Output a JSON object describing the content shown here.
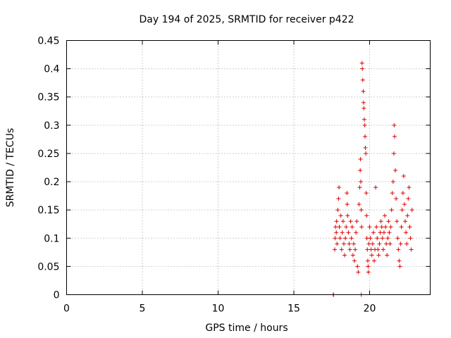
{
  "chart_data": {
    "type": "scatter",
    "title": "Day 194 of 2025, SRMTID for receiver p422",
    "xlabel": "GPS time / hours",
    "ylabel": "SRMTID / TECUs",
    "xlim": [
      0,
      24
    ],
    "ylim": [
      0,
      0.45
    ],
    "xticks": [
      0,
      5,
      10,
      15,
      20
    ],
    "xtick_labels": [
      "0",
      "5",
      "10",
      "15",
      "20"
    ],
    "yticks": [
      0,
      0.05,
      0.1,
      0.15,
      0.2,
      0.25,
      0.3,
      0.35,
      0.4,
      0.45
    ],
    "ytick_labels": [
      "0",
      "0.05",
      "0.1",
      "0.15",
      "0.2",
      "0.25",
      "0.3",
      "0.35",
      "0.4",
      "0.45"
    ],
    "grid": true,
    "marker": "+",
    "color": "#dd0000",
    "series": [
      {
        "name": "SRMTID",
        "points": [
          [
            17.6,
            0.0
          ],
          [
            17.62,
            0.0
          ],
          [
            19.45,
            0.0
          ],
          [
            17.7,
            0.08
          ],
          [
            17.72,
            0.1
          ],
          [
            17.75,
            0.12
          ],
          [
            17.8,
            0.11
          ],
          [
            17.82,
            0.13
          ],
          [
            17.85,
            0.09
          ],
          [
            17.9,
            0.15
          ],
          [
            17.95,
            0.17
          ],
          [
            17.98,
            0.19
          ],
          [
            18.0,
            0.12
          ],
          [
            18.05,
            0.1
          ],
          [
            18.1,
            0.14
          ],
          [
            18.15,
            0.08
          ],
          [
            18.2,
            0.11
          ],
          [
            18.25,
            0.13
          ],
          [
            18.3,
            0.09
          ],
          [
            18.35,
            0.07
          ],
          [
            18.4,
            0.1
          ],
          [
            18.45,
            0.12
          ],
          [
            18.5,
            0.18
          ],
          [
            18.52,
            0.16
          ],
          [
            18.55,
            0.14
          ],
          [
            18.6,
            0.11
          ],
          [
            18.65,
            0.09
          ],
          [
            18.7,
            0.08
          ],
          [
            18.75,
            0.13
          ],
          [
            18.8,
            0.1
          ],
          [
            18.85,
            0.12
          ],
          [
            18.9,
            0.07
          ],
          [
            18.95,
            0.09
          ],
          [
            19.0,
            0.06
          ],
          [
            19.05,
            0.08
          ],
          [
            19.1,
            0.11
          ],
          [
            19.15,
            0.13
          ],
          [
            19.2,
            0.05
          ],
          [
            19.25,
            0.04
          ],
          [
            19.3,
            0.16
          ],
          [
            19.35,
            0.19
          ],
          [
            19.38,
            0.22
          ],
          [
            19.4,
            0.24
          ],
          [
            19.42,
            0.2
          ],
          [
            19.45,
            0.15
          ],
          [
            19.47,
            0.12
          ],
          [
            19.5,
            0.41
          ],
          [
            19.52,
            0.4
          ],
          [
            19.55,
            0.38
          ],
          [
            19.58,
            0.36
          ],
          [
            19.6,
            0.34
          ],
          [
            19.62,
            0.33
          ],
          [
            19.65,
            0.31
          ],
          [
            19.68,
            0.3
          ],
          [
            19.7,
            0.28
          ],
          [
            19.72,
            0.26
          ],
          [
            19.75,
            0.25
          ],
          [
            19.78,
            0.18
          ],
          [
            19.8,
            0.14
          ],
          [
            19.82,
            0.1
          ],
          [
            19.85,
            0.08
          ],
          [
            19.88,
            0.06
          ],
          [
            19.9,
            0.05
          ],
          [
            19.92,
            0.04
          ],
          [
            19.95,
            0.09
          ],
          [
            20.0,
            0.12
          ],
          [
            20.05,
            0.1
          ],
          [
            20.1,
            0.08
          ],
          [
            20.15,
            0.07
          ],
          [
            20.2,
            0.09
          ],
          [
            20.25,
            0.11
          ],
          [
            20.3,
            0.06
          ],
          [
            20.35,
            0.08
          ],
          [
            20.4,
            0.19
          ],
          [
            20.45,
            0.12
          ],
          [
            20.5,
            0.1
          ],
          [
            20.55,
            0.08
          ],
          [
            20.6,
            0.07
          ],
          [
            20.65,
            0.09
          ],
          [
            20.7,
            0.11
          ],
          [
            20.75,
            0.13
          ],
          [
            20.8,
            0.12
          ],
          [
            20.85,
            0.1
          ],
          [
            20.9,
            0.08
          ],
          [
            20.95,
            0.11
          ],
          [
            21.0,
            0.14
          ],
          [
            21.05,
            0.12
          ],
          [
            21.1,
            0.09
          ],
          [
            21.15,
            0.07
          ],
          [
            21.2,
            0.1
          ],
          [
            21.25,
            0.13
          ],
          [
            21.3,
            0.11
          ],
          [
            21.35,
            0.09
          ],
          [
            21.4,
            0.12
          ],
          [
            21.45,
            0.15
          ],
          [
            21.5,
            0.18
          ],
          [
            21.55,
            0.2
          ],
          [
            21.6,
            0.25
          ],
          [
            21.62,
            0.3
          ],
          [
            21.65,
            0.28
          ],
          [
            21.7,
            0.22
          ],
          [
            21.75,
            0.17
          ],
          [
            21.8,
            0.13
          ],
          [
            21.85,
            0.1
          ],
          [
            21.9,
            0.08
          ],
          [
            21.95,
            0.06
          ],
          [
            22.0,
            0.05
          ],
          [
            22.05,
            0.09
          ],
          [
            22.1,
            0.12
          ],
          [
            22.15,
            0.15
          ],
          [
            22.2,
            0.18
          ],
          [
            22.25,
            0.21
          ],
          [
            22.3,
            0.16
          ],
          [
            22.35,
            0.13
          ],
          [
            22.4,
            0.11
          ],
          [
            22.45,
            0.09
          ],
          [
            22.5,
            0.14
          ],
          [
            22.55,
            0.17
          ],
          [
            22.6,
            0.19
          ],
          [
            22.65,
            0.12
          ],
          [
            22.7,
            0.1
          ],
          [
            22.75,
            0.08
          ],
          [
            22.8,
            0.15
          ]
        ]
      }
    ]
  }
}
